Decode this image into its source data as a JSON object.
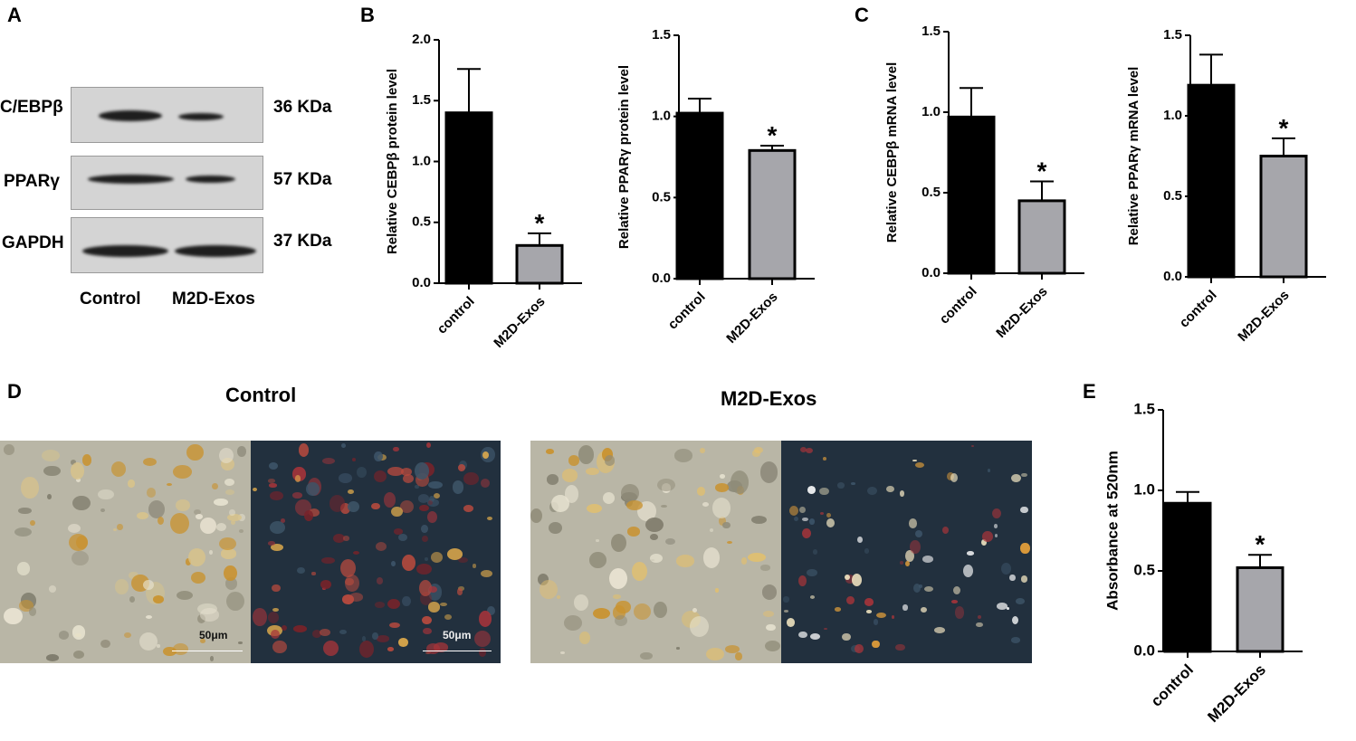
{
  "panels": {
    "A": "A",
    "B": "B",
    "C": "C",
    "D": "D",
    "E": "E"
  },
  "western_blot": {
    "rows": [
      {
        "protein": "C/EBPβ",
        "size": "36 KDa"
      },
      {
        "protein": "PPARγ",
        "size": "57 KDa"
      },
      {
        "protein": "GAPDH",
        "size": "37 KDa"
      }
    ],
    "lanes": [
      "Control",
      "M2D-Exos"
    ]
  },
  "micrographs": {
    "control_title": "Control",
    "treated_title": "M2D-Exos",
    "scale_label": "50μm"
  },
  "significance_marker": "*",
  "colors": {
    "control_bar": "#000000",
    "treated_bar": "#a6a6ab"
  },
  "chart_data": [
    {
      "id": "B1",
      "type": "bar",
      "categories": [
        "control",
        "M2D-Exos"
      ],
      "values": [
        1.4,
        0.31
      ],
      "errors": [
        0.36,
        0.1
      ],
      "ylabel": "Relative CEBPβ protein level",
      "ylim": [
        0,
        2.0
      ],
      "yticks": [
        "0.0",
        "0.5",
        "1.0",
        "1.5",
        "2.0"
      ],
      "yticks_values": [
        0,
        0.5,
        1.0,
        1.5,
        2.0
      ],
      "significant": [
        false,
        true
      ]
    },
    {
      "id": "B2",
      "type": "bar",
      "categories": [
        "control",
        "M2D-Exos"
      ],
      "values": [
        1.02,
        0.79
      ],
      "errors": [
        0.09,
        0.03
      ],
      "ylabel": "Relative PPARγ protein level",
      "ylim": [
        0,
        1.5
      ],
      "yticks": [
        "0.0",
        "0.5",
        "1.0",
        "1.5"
      ],
      "yticks_values": [
        0,
        0.5,
        1.0,
        1.5
      ],
      "significant": [
        false,
        true
      ]
    },
    {
      "id": "C1",
      "type": "bar",
      "categories": [
        "control",
        "M2D-Exos"
      ],
      "values": [
        0.97,
        0.45
      ],
      "errors": [
        0.18,
        0.12
      ],
      "ylabel": "Relative CEBPβ mRNA level",
      "ylim": [
        0,
        1.5
      ],
      "yticks": [
        "0.0",
        "0.5",
        "1.0",
        "1.5"
      ],
      "yticks_values": [
        0,
        0.5,
        1.0,
        1.5
      ],
      "significant": [
        false,
        true
      ]
    },
    {
      "id": "C2",
      "type": "bar",
      "categories": [
        "control",
        "M2D-Exos"
      ],
      "values": [
        1.19,
        0.75
      ],
      "errors": [
        0.19,
        0.11
      ],
      "ylabel": "Relative PPARγ mRNA level",
      "ylim": [
        0,
        1.5
      ],
      "yticks": [
        "0.0",
        "0.5",
        "1.0",
        "1.5"
      ],
      "yticks_values": [
        0,
        0.5,
        1.0,
        1.5
      ],
      "significant": [
        false,
        true
      ]
    },
    {
      "id": "E",
      "type": "bar",
      "categories": [
        "control",
        "M2D-Exos"
      ],
      "values": [
        0.92,
        0.52
      ],
      "errors": [
        0.07,
        0.08
      ],
      "ylabel": "Absorbance at 520nm",
      "ylim": [
        0,
        1.5
      ],
      "yticks": [
        "0.0",
        "0.5",
        "1.0",
        "1.5"
      ],
      "yticks_values": [
        0,
        0.5,
        1.0,
        1.5
      ],
      "significant": [
        false,
        true
      ]
    }
  ]
}
